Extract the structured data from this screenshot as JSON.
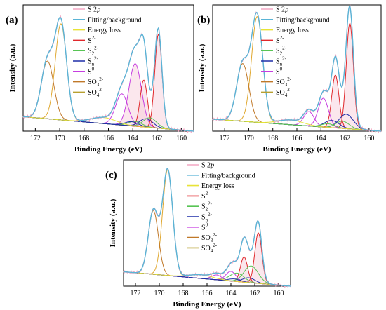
{
  "figure": {
    "panels": [
      {
        "label": "(a)"
      },
      {
        "label": "(b)"
      },
      {
        "label": "(c)"
      }
    ]
  },
  "chart_data": [
    {
      "type": "line",
      "panel": "(a)",
      "xlabel": "Binding Energy (eV)",
      "ylabel": "Intensity (a.u.)",
      "xlim": [
        173,
        159
      ],
      "x_reversed": true,
      "xticks": [
        172,
        170,
        168,
        166,
        164,
        162,
        160
      ],
      "ylim": [
        0,
        1.05
      ],
      "y_ticklabels_shown": false,
      "legend": {
        "placement": "top-left",
        "entries": [
          {
            "name": "S 2",
            "suffix": "p",
            "color": "#f4a7c3"
          },
          {
            "name": "Fitting/background",
            "suffix": "",
            "color": "#5ab4d6"
          },
          {
            "name": "Energy loss",
            "suffix": "",
            "color": "#e8e337"
          },
          {
            "name": "S",
            "sub": "",
            "sup": "2-",
            "color": "#e0282c"
          },
          {
            "name": "S",
            "sub": "2",
            "sup": "2-",
            "color": "#58c454"
          },
          {
            "name": "S",
            "sub": "n",
            "sup": "2-",
            "color": "#1e2fa8"
          },
          {
            "name": "S",
            "sub": "",
            "sup": "0",
            "color": "#c63ee0"
          },
          {
            "name": "SO",
            "sub": "3",
            "sup": "2-",
            "color": "#c07828"
          },
          {
            "name": "SO",
            "sub": "4",
            "sup": "2-",
            "color": "#b8a030"
          }
        ]
      },
      "baseline": {
        "color": "#8a8a3c",
        "left": 0.12,
        "right": 0.0
      },
      "components": [
        {
          "name": "SO4 2-",
          "color": "#e0a830",
          "center": 169.9,
          "fwhm": 1.1,
          "height": 0.8
        },
        {
          "name": "SO3 2-",
          "color": "#c07828",
          "center": 171.0,
          "fwhm": 1.2,
          "height": 0.48
        },
        {
          "name": "S0",
          "color": "#c63ee0",
          "center": 163.8,
          "fwhm": 1.2,
          "height": 0.52
        },
        {
          "name": "S0",
          "color": "#c63ee0",
          "center": 164.9,
          "fwhm": 1.2,
          "height": 0.26
        },
        {
          "name": "S2-",
          "color": "#e0282c",
          "center": 161.9,
          "fwhm": 0.7,
          "height": 0.78
        },
        {
          "name": "S2-",
          "color": "#e0282c",
          "center": 163.1,
          "fwhm": 0.7,
          "height": 0.39
        },
        {
          "name": "S2 2-",
          "color": "#58c454",
          "center": 162.6,
          "fwhm": 1.3,
          "height": 0.08
        },
        {
          "name": "S2 2-",
          "color": "#58c454",
          "center": 163.8,
          "fwhm": 1.3,
          "height": 0.04
        },
        {
          "name": "Sn 2-",
          "color": "#1e2fa8",
          "center": 162.9,
          "fwhm": 1.3,
          "height": 0.07
        },
        {
          "name": "Sn 2-",
          "color": "#1e2fa8",
          "center": 164.1,
          "fwhm": 1.3,
          "height": 0.035
        },
        {
          "name": "Energy loss",
          "color": "#e8e337",
          "center": 166.4,
          "fwhm": 2.4,
          "height": 0.05
        }
      ],
      "shaded_peaks": [
        163.8,
        161.9,
        163.1
      ]
    },
    {
      "type": "line",
      "panel": "(b)",
      "xlabel": "Binding Energy (eV)",
      "ylabel": "Intensity (a.u.)",
      "xlim": [
        173,
        159
      ],
      "x_reversed": true,
      "xticks": [
        172,
        170,
        168,
        166,
        164,
        162,
        160
      ],
      "ylim": [
        0,
        1.05
      ],
      "y_ticklabels_shown": false,
      "legend": {
        "placement": "top-left",
        "entries": [
          {
            "name": "S 2",
            "suffix": "p",
            "color": "#f4a7c3"
          },
          {
            "name": "Fitting/background",
            "suffix": "",
            "color": "#5ab4d6"
          },
          {
            "name": "Energy loss",
            "suffix": "",
            "color": "#e8e337"
          },
          {
            "name": "S",
            "sub": "",
            "sup": "2-",
            "color": "#e0282c"
          },
          {
            "name": "S",
            "sub": "2",
            "sup": "2-",
            "color": "#58c454"
          },
          {
            "name": "S",
            "sub": "n",
            "sup": "2-",
            "color": "#1e2fa8"
          },
          {
            "name": "S",
            "sub": "",
            "sup": "0",
            "color": "#c63ee0"
          },
          {
            "name": "SO",
            "sub": "3",
            "sup": "2-",
            "color": "#c07828"
          },
          {
            "name": "SO",
            "sub": "4",
            "sup": "2-",
            "color": "#b8a030"
          }
        ]
      },
      "baseline": {
        "color": "#8a8a3c",
        "left": 0.1,
        "right": 0.0
      },
      "components": [
        {
          "name": "SO4 2-",
          "color": "#e0a830",
          "center": 169.3,
          "fwhm": 1.1,
          "height": 0.88
        },
        {
          "name": "SO3 2-",
          "color": "#c07828",
          "center": 170.5,
          "fwhm": 1.2,
          "height": 0.48
        },
        {
          "name": "S2-",
          "color": "#e0282c",
          "center": 161.6,
          "fwhm": 0.7,
          "height": 0.88
        },
        {
          "name": "S2-",
          "color": "#e0282c",
          "center": 162.8,
          "fwhm": 0.7,
          "height": 0.44
        },
        {
          "name": "S0",
          "color": "#c63ee0",
          "center": 163.8,
          "fwhm": 1.0,
          "height": 0.24
        },
        {
          "name": "S0",
          "color": "#c63ee0",
          "center": 165.0,
          "fwhm": 1.0,
          "height": 0.12
        },
        {
          "name": "Sn 2-",
          "color": "#1e2fa8",
          "center": 161.9,
          "fwhm": 1.4,
          "height": 0.12
        },
        {
          "name": "Sn 2-",
          "color": "#1e2fa8",
          "center": 163.1,
          "fwhm": 1.4,
          "height": 0.06
        },
        {
          "name": "S2 2-",
          "color": "#58c454",
          "center": 162.2,
          "fwhm": 1.3,
          "height": 0.06
        },
        {
          "name": "S2 2-",
          "color": "#58c454",
          "center": 163.4,
          "fwhm": 1.3,
          "height": 0.03
        },
        {
          "name": "Energy loss",
          "color": "#e8e337",
          "center": 166.5,
          "fwhm": 2.4,
          "height": 0.04
        }
      ],
      "shaded_peaks": [
        161.6,
        162.8
      ]
    },
    {
      "type": "line",
      "panel": "(c)",
      "xlabel": "Binding Energy (eV)",
      "ylabel": "Intensity (a.u.)",
      "xlim": [
        173,
        159
      ],
      "x_reversed": true,
      "xticks": [
        172,
        170,
        168,
        166,
        164,
        162,
        160
      ],
      "ylim": [
        0,
        1.05
      ],
      "y_ticklabels_shown": false,
      "legend": {
        "placement": "top-right",
        "entries": [
          {
            "name": "S 2",
            "suffix": "p",
            "color": "#f4a7c3"
          },
          {
            "name": "Fitting/background",
            "suffix": "",
            "color": "#5ab4d6"
          },
          {
            "name": "Energy loss",
            "suffix": "",
            "color": "#e8e337"
          },
          {
            "name": "S",
            "sub": "",
            "sup": "2-",
            "color": "#e0282c"
          },
          {
            "name": "S",
            "sub": "2",
            "sup": "2-",
            "color": "#58c454"
          },
          {
            "name": "S",
            "sub": "n",
            "sup": "2-",
            "color": "#1e2fa8"
          },
          {
            "name": "S",
            "sub": "",
            "sup": "0",
            "color": "#c63ee0"
          },
          {
            "name": "SO",
            "sub": "3",
            "sup": "2-",
            "color": "#c07828"
          },
          {
            "name": "SO",
            "sub": "4",
            "sup": "2-",
            "color": "#b8a030"
          }
        ]
      },
      "baseline": {
        "color": "#8a8a3c",
        "left": 0.12,
        "right": 0.0
      },
      "components": [
        {
          "name": "SO4 2-",
          "color": "#e0a830",
          "center": 169.3,
          "fwhm": 1.0,
          "height": 0.88
        },
        {
          "name": "SO3 2-",
          "color": "#c07828",
          "center": 170.5,
          "fwhm": 1.0,
          "height": 0.53
        },
        {
          "name": "S2-",
          "color": "#e0282c",
          "center": 161.7,
          "fwhm": 0.7,
          "height": 0.42
        },
        {
          "name": "S2-",
          "color": "#e0282c",
          "center": 162.9,
          "fwhm": 0.7,
          "height": 0.21
        },
        {
          "name": "S2 2-",
          "color": "#58c454",
          "center": 162.3,
          "fwhm": 1.4,
          "height": 0.14
        },
        {
          "name": "S2 2-",
          "color": "#58c454",
          "center": 163.5,
          "fwhm": 1.4,
          "height": 0.07
        },
        {
          "name": "S0",
          "color": "#c63ee0",
          "center": 164.0,
          "fwhm": 1.0,
          "height": 0.08
        },
        {
          "name": "S0",
          "color": "#c63ee0",
          "center": 165.2,
          "fwhm": 1.0,
          "height": 0.04
        },
        {
          "name": "Sn 2-",
          "color": "#1e2fa8",
          "center": 162.5,
          "fwhm": 1.2,
          "height": 0.04
        },
        {
          "name": "Sn 2-",
          "color": "#1e2fa8",
          "center": 163.7,
          "fwhm": 1.2,
          "height": 0.02
        },
        {
          "name": "Energy loss",
          "color": "#e8e337",
          "center": 166.5,
          "fwhm": 2.4,
          "height": 0.03
        }
      ],
      "shaded_peaks": [
        161.7,
        162.9
      ]
    }
  ]
}
